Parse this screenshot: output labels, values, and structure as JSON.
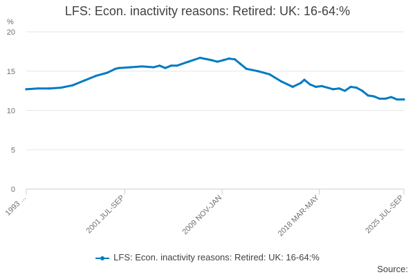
{
  "chart_data": {
    "type": "line",
    "title": "LFS: Econ. inactivity reasons: Retired: UK: 16-64:%",
    "xlabel": "",
    "ylabel": "%",
    "ylim": [
      0,
      20
    ],
    "yticks": [
      0,
      5,
      10,
      15,
      20
    ],
    "x_range": [
      1993.0,
      2025.6
    ],
    "xtick_labels": [
      {
        "label": "1993 ...",
        "x": 1993.0
      },
      {
        "label": "2001 JUL-SEP",
        "x": 2001.5
      },
      {
        "label": "2009 NOV-JAN",
        "x": 2009.9
      },
      {
        "label": "2018 MAR-MAY",
        "x": 2018.3
      },
      {
        "label": "2025 JUL-SEP",
        "x": 2025.6
      }
    ],
    "grid": true,
    "legend_position": "bottom-center",
    "color": "#007ac3",
    "series": [
      {
        "name": "LFS: Econ. inactivity reasons: Retired: UK: 16-64:%",
        "x": [
          1993.0,
          1994.0,
          1995.0,
          1996.0,
          1997.0,
          1998.0,
          1999.0,
          2000.0,
          2000.7,
          2001.0,
          2002.0,
          2003.0,
          2004.0,
          2004.5,
          2005.0,
          2005.5,
          2006.0,
          2007.0,
          2008.0,
          2009.0,
          2009.5,
          2010.0,
          2010.5,
          2011.0,
          2011.5,
          2012.0,
          2013.0,
          2014.0,
          2015.0,
          2016.0,
          2016.7,
          2017.0,
          2017.5,
          2018.0,
          2018.5,
          2019.0,
          2019.5,
          2020.0,
          2020.5,
          2021.0,
          2021.5,
          2022.0,
          2022.5,
          2023.0,
          2023.5,
          2024.0,
          2024.5,
          2025.0,
          2025.6
        ],
        "values": [
          12.7,
          12.8,
          12.8,
          12.9,
          13.2,
          13.8,
          14.4,
          14.8,
          15.3,
          15.4,
          15.5,
          15.6,
          15.5,
          15.7,
          15.4,
          15.7,
          15.7,
          16.2,
          16.7,
          16.4,
          16.2,
          16.4,
          16.6,
          16.5,
          15.9,
          15.3,
          15.0,
          14.6,
          13.7,
          13.0,
          13.5,
          13.9,
          13.3,
          13.0,
          13.1,
          12.9,
          12.7,
          12.8,
          12.5,
          13.0,
          12.9,
          12.5,
          11.9,
          11.8,
          11.5,
          11.5,
          11.7,
          11.4,
          11.4
        ]
      }
    ]
  },
  "legend": {
    "label": "LFS: Econ. inactivity reasons: Retired: UK: 16-64:%"
  },
  "source": {
    "label": "Source:"
  }
}
